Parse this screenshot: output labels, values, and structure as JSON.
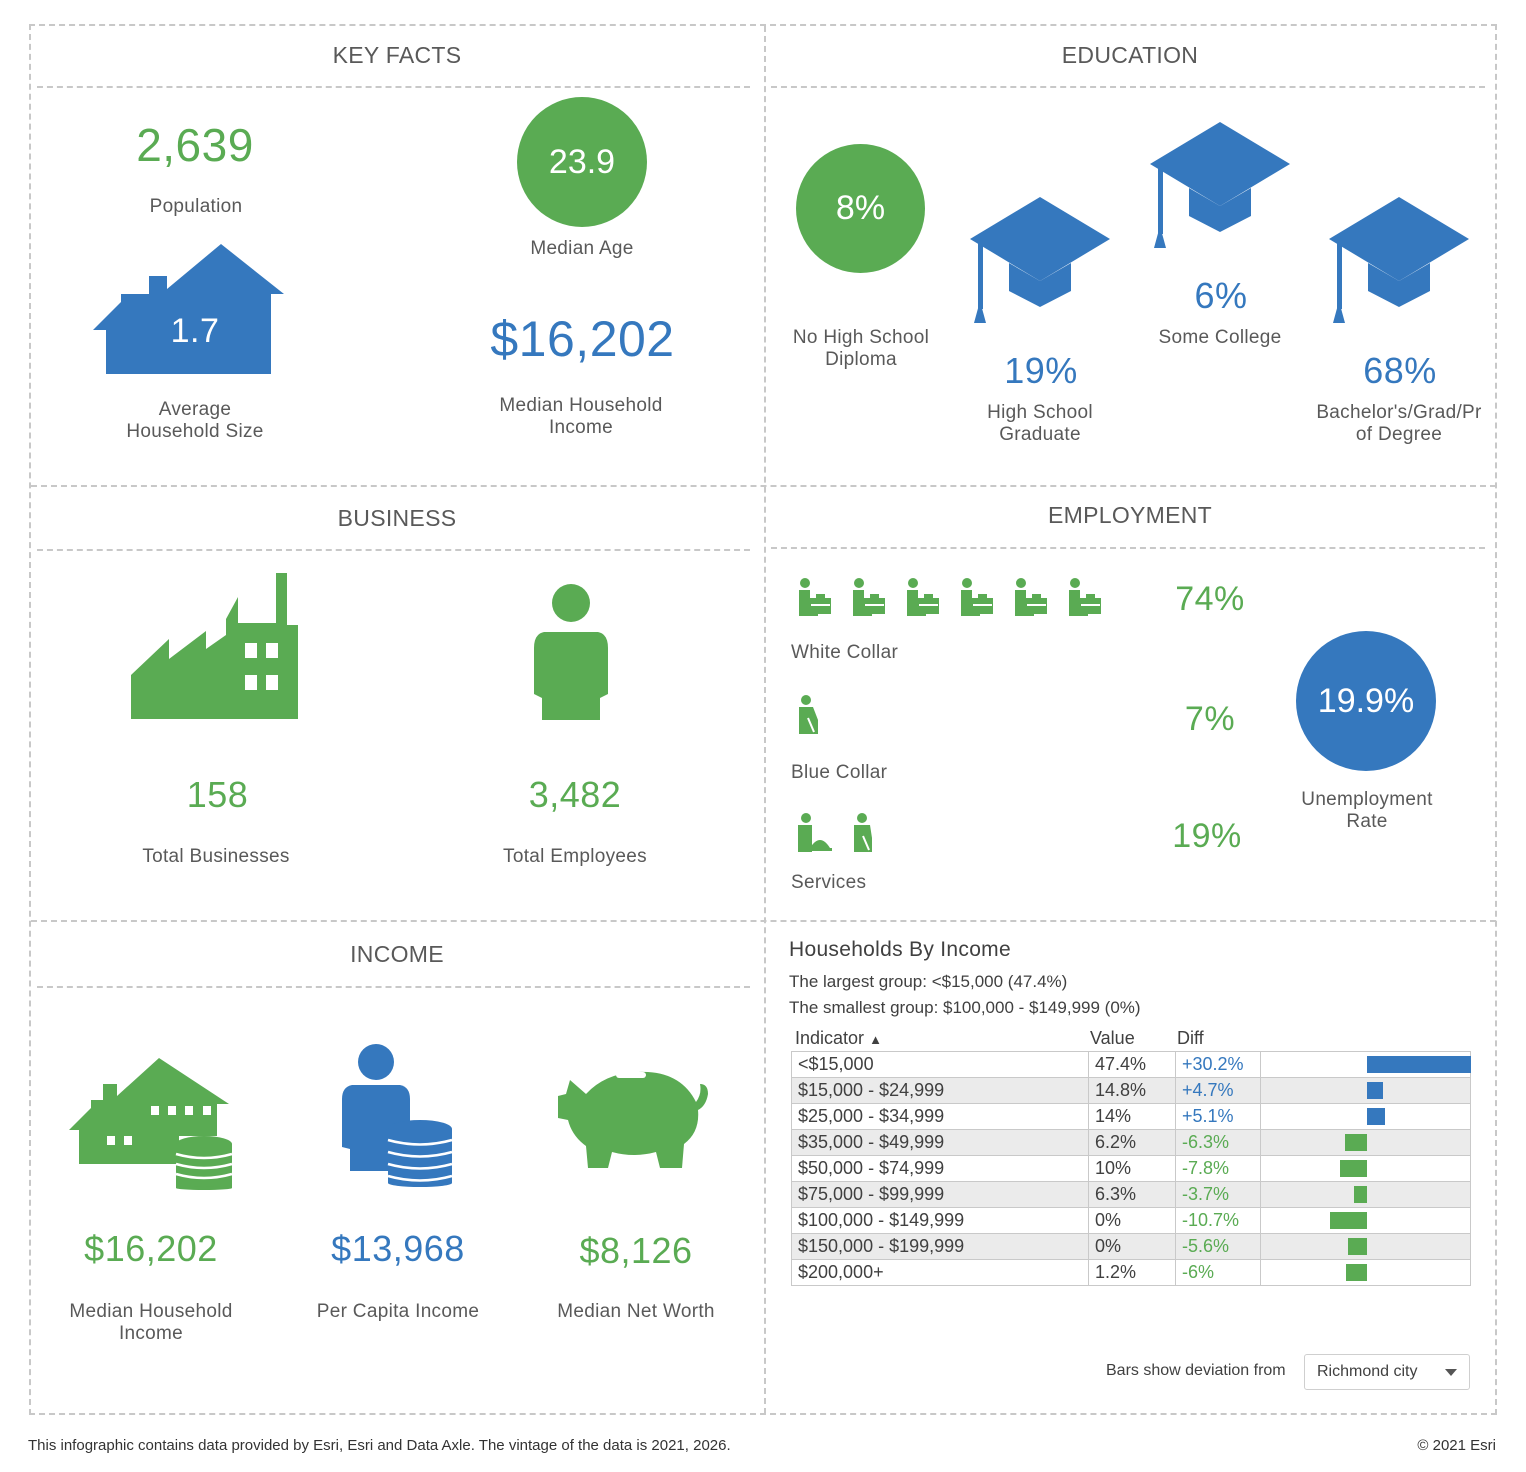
{
  "key_facts": {
    "title": "KEY FACTS",
    "population_value": "2,639",
    "population_label": "Population",
    "median_age_value": "23.9",
    "median_age_label": "Median Age",
    "avg_household_value": "1.7",
    "avg_household_label_1": "Average",
    "avg_household_label_2": "Household Size",
    "median_income_value": "$16,202",
    "median_income_label_1": "Median Household",
    "median_income_label_2": "Income"
  },
  "education": {
    "title": "EDUCATION",
    "no_hs_value": "8%",
    "no_hs_label_1": "No High School",
    "no_hs_label_2": "Diploma",
    "hs_grad_value": "19%",
    "hs_grad_label_1": "High School",
    "hs_grad_label_2": "Graduate",
    "some_college_value": "6%",
    "some_college_label": "Some College",
    "bachelors_value": "68%",
    "bachelors_label_1": "Bachelor's/Grad/Pr",
    "bachelors_label_2": "of Degree"
  },
  "business": {
    "title": "BUSINESS",
    "total_businesses_value": "158",
    "total_businesses_label": "Total Businesses",
    "total_employees_value": "3,482",
    "total_employees_label": "Total Employees"
  },
  "employment": {
    "title": "EMPLOYMENT",
    "white_collar_value": "74%",
    "white_collar_label": "White Collar",
    "blue_collar_value": "7%",
    "blue_collar_label": "Blue Collar",
    "services_value": "19%",
    "services_label": "Services",
    "unemployment_value": "19.9%",
    "unemployment_label_1": "Unemployment",
    "unemployment_label_2": "Rate"
  },
  "income": {
    "title": "INCOME",
    "median_hh_value": "$16,202",
    "median_hh_label_1": "Median Household",
    "median_hh_label_2": "Income",
    "per_capita_value": "$13,968",
    "per_capita_label": "Per Capita Income",
    "net_worth_value": "$8,126",
    "net_worth_label": "Median Net Worth"
  },
  "households_by_income": {
    "title": "Households By Income",
    "largest": "The largest group: <$15,000 (47.4%)",
    "smallest": "The smallest group: $100,000 - $149,999 (0%)",
    "col_indicator": "Indicator",
    "sort_arrow": "▲",
    "col_value": "Value",
    "col_diff": "Diff",
    "rows": [
      {
        "indicator": "<$15,000",
        "value": "47.4%",
        "diff": "+30.2%",
        "diff_num": 30.2
      },
      {
        "indicator": "$15,000 - $24,999",
        "value": "14.8%",
        "diff": "+4.7%",
        "diff_num": 4.7
      },
      {
        "indicator": "$25,000 - $34,999",
        "value": "14%",
        "diff": "+5.1%",
        "diff_num": 5.1
      },
      {
        "indicator": "$35,000 - $49,999",
        "value": "6.2%",
        "diff": "-6.3%",
        "diff_num": -6.3
      },
      {
        "indicator": "$50,000 - $74,999",
        "value": "10%",
        "diff": "-7.8%",
        "diff_num": -7.8
      },
      {
        "indicator": "$75,000 - $99,999",
        "value": "6.3%",
        "diff": "-3.7%",
        "diff_num": -3.7
      },
      {
        "indicator": "$100,000 - $149,999",
        "value": "0%",
        "diff": "-10.7%",
        "diff_num": -10.7
      },
      {
        "indicator": "$150,000 - $199,999",
        "value": "0%",
        "diff": "-5.6%",
        "diff_num": -5.6
      },
      {
        "indicator": "$200,000+",
        "value": "1.2%",
        "diff": "-6%",
        "diff_num": -6
      }
    ],
    "deviation_label": "Bars show deviation from",
    "deviation_selected": "Richmond city"
  },
  "footer": {
    "source": "This infographic contains data provided by Esri, Esri and Data Axle. The vintage of the data is 2021, 2026.",
    "copyright": "© 2021 Esri"
  },
  "colors": {
    "green": "#5aab53",
    "blue": "#3578be",
    "text": "#595959"
  }
}
